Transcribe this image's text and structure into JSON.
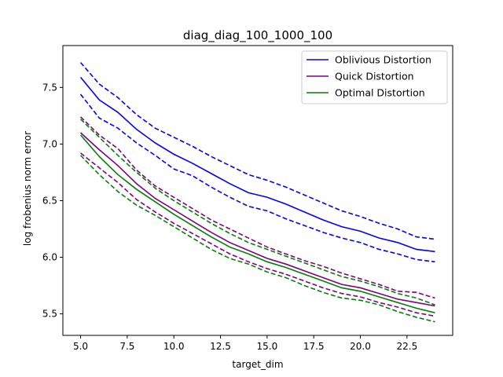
{
  "chart_data": {
    "type": "line",
    "title": "diag_diag_100_1000_100",
    "xlabel": "target_dim",
    "ylabel": "log frobenius norm error",
    "xlim": [
      4.05,
      24.95
    ],
    "ylim": [
      5.31,
      7.87
    ],
    "xticks": [
      5.0,
      7.5,
      10.0,
      12.5,
      15.0,
      17.5,
      20.0,
      22.5
    ],
    "xtick_labels": [
      "5.0",
      "7.5",
      "10.0",
      "12.5",
      "15.0",
      "17.5",
      "20.0",
      "22.5"
    ],
    "yticks": [
      5.5,
      6.0,
      6.5,
      7.0,
      7.5
    ],
    "ytick_labels": [
      "5.5",
      "6.0",
      "6.5",
      "7.0",
      "7.5"
    ],
    "legend_position": "top-right",
    "x": [
      5,
      6,
      7,
      8,
      9,
      10,
      11,
      12,
      13,
      14,
      15,
      16,
      17,
      18,
      19,
      20,
      21,
      22,
      23,
      24
    ],
    "series": [
      {
        "name": "Oblivious Distortion",
        "color": "#0000ff",
        "values": [
          7.59,
          7.39,
          7.28,
          7.13,
          7.01,
          6.91,
          6.83,
          6.74,
          6.65,
          6.57,
          6.53,
          6.47,
          6.4,
          6.33,
          6.27,
          6.23,
          6.17,
          6.13,
          6.07,
          6.05
        ],
        "upper": [
          7.72,
          7.53,
          7.41,
          7.26,
          7.14,
          7.06,
          6.98,
          6.89,
          6.81,
          6.73,
          6.68,
          6.62,
          6.55,
          6.48,
          6.41,
          6.36,
          6.3,
          6.25,
          6.18,
          6.16
        ],
        "lower": [
          7.44,
          7.23,
          7.14,
          7.01,
          6.9,
          6.78,
          6.72,
          6.62,
          6.53,
          6.45,
          6.41,
          6.34,
          6.28,
          6.22,
          6.17,
          6.13,
          6.07,
          6.03,
          5.98,
          5.96
        ]
      },
      {
        "name": "Quick Distortion",
        "color": "#800080",
        "values": [
          7.1,
          6.95,
          6.81,
          6.65,
          6.52,
          6.42,
          6.32,
          6.22,
          6.13,
          6.06,
          5.99,
          5.94,
          5.88,
          5.82,
          5.76,
          5.73,
          5.68,
          5.63,
          5.6,
          5.57
        ],
        "upper": [
          7.24,
          7.08,
          6.96,
          6.77,
          6.63,
          6.53,
          6.43,
          6.33,
          6.25,
          6.17,
          6.09,
          6.03,
          5.97,
          5.92,
          5.86,
          5.81,
          5.76,
          5.7,
          5.69,
          5.64
        ],
        "lower": [
          6.92,
          6.79,
          6.66,
          6.51,
          6.4,
          6.3,
          6.21,
          6.12,
          6.03,
          5.96,
          5.9,
          5.85,
          5.79,
          5.73,
          5.68,
          5.65,
          5.6,
          5.56,
          5.51,
          5.48
        ]
      },
      {
        "name": "Optimal Distortion",
        "color": "#008000",
        "values": [
          7.08,
          6.89,
          6.73,
          6.6,
          6.49,
          6.38,
          6.28,
          6.18,
          6.09,
          6.03,
          5.96,
          5.91,
          5.85,
          5.79,
          5.73,
          5.7,
          5.65,
          5.6,
          5.55,
          5.51
        ],
        "upper": [
          7.22,
          7.06,
          6.9,
          6.75,
          6.61,
          6.5,
          6.4,
          6.3,
          6.21,
          6.13,
          6.07,
          6.01,
          5.95,
          5.89,
          5.83,
          5.79,
          5.74,
          5.68,
          5.64,
          5.58
        ],
        "lower": [
          6.9,
          6.73,
          6.58,
          6.46,
          6.37,
          6.27,
          6.17,
          6.07,
          5.99,
          5.94,
          5.87,
          5.82,
          5.75,
          5.69,
          5.64,
          5.62,
          5.58,
          5.52,
          5.47,
          5.43
        ]
      }
    ]
  }
}
